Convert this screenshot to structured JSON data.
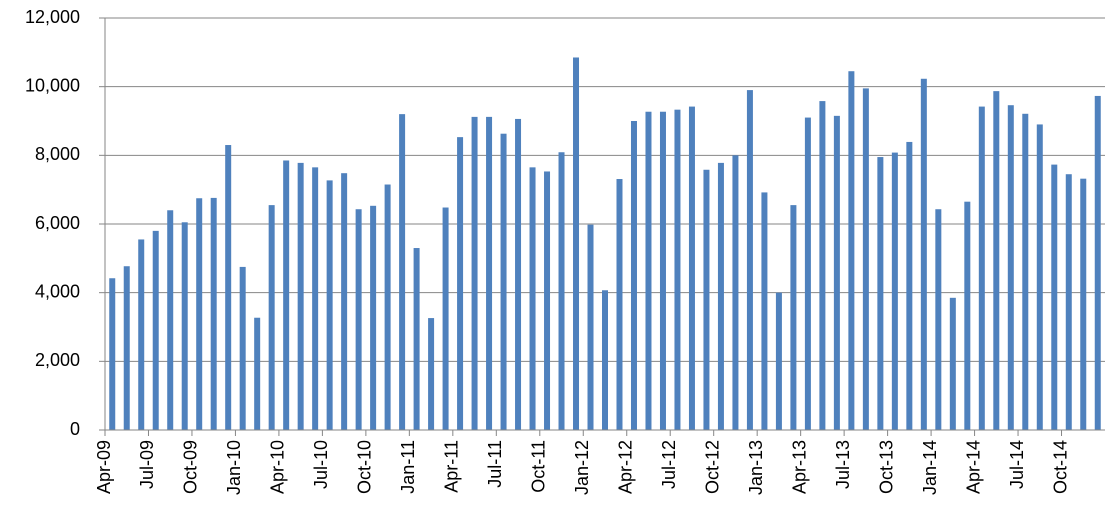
{
  "chart_data": {
    "type": "bar",
    "categories": [
      "Apr-09",
      null,
      null,
      "Jul-09",
      null,
      null,
      "Oct-09",
      null,
      null,
      "Jan-10",
      null,
      null,
      "Apr-10",
      null,
      null,
      "Jul-10",
      null,
      null,
      "Oct-10",
      null,
      null,
      "Jan-11",
      null,
      null,
      "Apr-11",
      null,
      null,
      "Jul-11",
      null,
      null,
      "Oct-11",
      null,
      null,
      "Jan-12",
      null,
      null,
      "Apr-12",
      null,
      null,
      "Jul-12",
      null,
      null,
      "Oct-12",
      null,
      null,
      "Jan-13",
      null,
      null,
      "Apr-13",
      null,
      null,
      "Jul-13",
      null,
      null,
      "Oct-13",
      null,
      null,
      "Jan-14",
      null,
      null,
      "Apr-14",
      null,
      null,
      "Jul-14",
      null,
      null,
      "Oct-14",
      null,
      null
    ],
    "values": [
      4420,
      4770,
      5550,
      5800,
      6400,
      6050,
      6750,
      6760,
      8300,
      4750,
      3270,
      6550,
      7850,
      7780,
      7650,
      7270,
      7480,
      6430,
      6530,
      7150,
      9200,
      5300,
      3260,
      6480,
      8530,
      9120,
      9120,
      8630,
      9060,
      7650,
      7530,
      8090,
      10850,
      5980,
      4070,
      7310,
      9000,
      9270,
      9270,
      9330,
      9420,
      7580,
      7780,
      8000,
      9900,
      6920,
      4000,
      6550,
      9100,
      9580,
      9150,
      10450,
      9950,
      7950,
      8080,
      8390,
      10230,
      6430,
      3850,
      6650,
      9420,
      9870,
      9460,
      9210,
      8900,
      7730,
      7450,
      7320,
      9730
    ],
    "color": "#4f81bd",
    "ylim": [
      0,
      12000
    ],
    "yticks": [
      0,
      {
        "value": 2000,
        "label": "2,000"
      },
      {
        "value": 4000,
        "label": "4,000"
      },
      {
        "value": 6000,
        "label": "6,000"
      },
      {
        "value": 8000,
        "label": "8,000"
      },
      {
        "value": 10000,
        "label": "10,000"
      },
      {
        "value": 12000,
        "label": "12,000"
      }
    ],
    "grid": true
  }
}
